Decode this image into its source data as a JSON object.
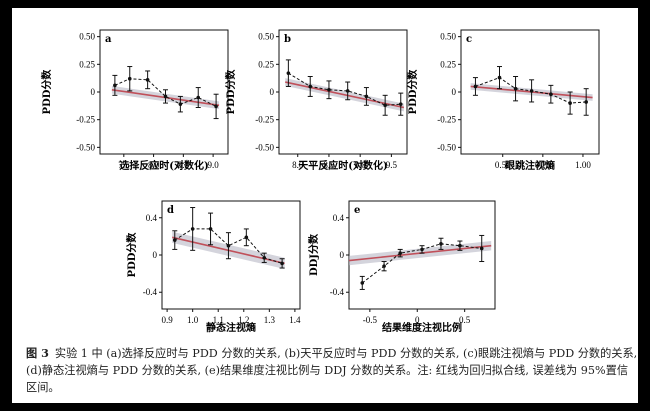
{
  "caption": {
    "label": "图 3",
    "text": "实验 1 中 (a)选择反应时与 PDD 分数的关系, (b)天平反应时与 PDD 分数的关系, (c)眼跳注视熵与 PDD 分数的关系, (d)静态注视熵与 PDD 分数的关系, (e)结果维度注视比例与 DDJ 分数的关系。注: 红线为回归拟合线, 误差线为 95%置信区间。"
  },
  "colors": {
    "regression": "#c0505a",
    "band": "#b8b8c4",
    "points": "#111111"
  },
  "chart_data": [
    {
      "panel": "a",
      "type": "line",
      "xlabel": "选择反应时(对数化)",
      "ylabel": "PDD分数",
      "xlim": [
        7.1,
        9.25
      ],
      "ylim": [
        -0.56,
        0.56
      ],
      "xticks": [
        7.5,
        8.0,
        8.5,
        9.0
      ],
      "xtick_labels": [
        "7.5",
        "8.0",
        "8.5",
        "9.0"
      ],
      "yticks": [
        -0.5,
        -0.25,
        0,
        0.25,
        0.5
      ],
      "ytick_labels": [
        "-0.50",
        "-0.25",
        "0",
        "0.25",
        "0.50"
      ],
      "x": [
        7.35,
        7.6,
        7.9,
        8.2,
        8.45,
        8.75,
        9.05
      ],
      "y": [
        0.06,
        0.12,
        0.11,
        -0.04,
        -0.11,
        -0.05,
        -0.13
      ],
      "err": [
        0.09,
        0.11,
        0.08,
        0.06,
        0.07,
        0.09,
        0.11
      ],
      "fit": {
        "x": [
          7.3,
          9.1
        ],
        "y": [
          0.02,
          -0.12
        ],
        "band": 0.035
      }
    },
    {
      "panel": "b",
      "type": "line",
      "xlabel": "天平反应时(对数化)",
      "ylabel": "PDD分数",
      "xlim": [
        7.7,
        9.75
      ],
      "ylim": [
        -0.56,
        0.56
      ],
      "xticks": [
        8.0,
        8.5,
        9.0,
        9.5
      ],
      "xtick_labels": [
        "8.0",
        "8.5",
        "9.0",
        "9.5"
      ],
      "yticks": [
        -0.5,
        -0.25,
        0,
        0.25,
        0.5
      ],
      "ytick_labels": [
        "-0.50",
        "-0.25",
        "0",
        "0.25",
        "0.50"
      ],
      "x": [
        7.85,
        8.2,
        8.5,
        8.8,
        9.1,
        9.4,
        9.65
      ],
      "y": [
        0.17,
        0.05,
        0.02,
        0.01,
        -0.04,
        -0.12,
        -0.11
      ],
      "err": [
        0.12,
        0.09,
        0.08,
        0.08,
        0.08,
        0.09,
        0.1
      ],
      "fit": {
        "x": [
          7.8,
          9.7
        ],
        "y": [
          0.09,
          -0.14
        ],
        "band": 0.035
      }
    },
    {
      "panel": "c",
      "type": "line",
      "xlabel": "眼跳注视熵",
      "ylabel": "PDD分数",
      "xlim": [
        0.24,
        1.1
      ],
      "ylim": [
        -0.56,
        0.56
      ],
      "xticks": [
        0.5,
        0.75,
        1.0
      ],
      "xtick_labels": [
        "0.50",
        "0.75",
        "1.00"
      ],
      "yticks": [
        -0.5,
        -0.25,
        0,
        0.25,
        0.5
      ],
      "ytick_labels": [
        "-0.50",
        "-0.25",
        "0",
        "0.25",
        "0.50"
      ],
      "x": [
        0.33,
        0.48,
        0.58,
        0.68,
        0.8,
        0.92,
        1.02
      ],
      "y": [
        0.05,
        0.13,
        0.03,
        0.01,
        -0.02,
        -0.1,
        -0.09
      ],
      "err": [
        0.08,
        0.1,
        0.11,
        0.1,
        0.08,
        0.1,
        0.12
      ],
      "fit": {
        "x": [
          0.3,
          1.06
        ],
        "y": [
          0.05,
          -0.05
        ],
        "band": 0.03
      }
    },
    {
      "panel": "d",
      "type": "line",
      "xlabel": "静态注视熵",
      "ylabel": "PDD分数",
      "xlim": [
        0.88,
        1.42
      ],
      "ylim": [
        -0.58,
        0.58
      ],
      "xticks": [
        0.9,
        1.0,
        1.1,
        1.2,
        1.3,
        1.4
      ],
      "xtick_labels": [
        "0.9",
        "1.0",
        "1.1",
        "1.2",
        "1.3",
        "1.4"
      ],
      "yticks": [
        -0.4,
        0,
        0.4
      ],
      "ytick_labels": [
        "-0.4",
        "0",
        "0.4"
      ],
      "x": [
        0.93,
        1.0,
        1.07,
        1.14,
        1.21,
        1.28,
        1.35
      ],
      "y": [
        0.16,
        0.28,
        0.28,
        0.1,
        0.19,
        -0.03,
        -0.09
      ],
      "err": [
        0.1,
        0.23,
        0.17,
        0.14,
        0.09,
        0.05,
        0.05
      ],
      "fit": {
        "x": [
          0.92,
          1.36
        ],
        "y": [
          0.19,
          -0.09
        ],
        "band": 0.06
      }
    },
    {
      "panel": "e",
      "type": "line",
      "xlabel": "结果维度注视比例",
      "ylabel": "DDJ分数",
      "xlim": [
        -0.72,
        0.82
      ],
      "ylim": [
        -0.58,
        0.58
      ],
      "xticks": [
        -0.5,
        0,
        0.5
      ],
      "xtick_labels": [
        "-0.5",
        "0",
        "0.5"
      ],
      "yticks": [
        -0.4,
        0,
        0.4
      ],
      "ytick_labels": [
        "-0.4",
        "0",
        "0.4"
      ],
      "x": [
        -0.58,
        -0.35,
        -0.18,
        0.05,
        0.25,
        0.45,
        0.68
      ],
      "y": [
        -0.3,
        -0.12,
        0.02,
        0.06,
        0.12,
        0.1,
        0.07
      ],
      "err": [
        0.07,
        0.05,
        0.04,
        0.04,
        0.06,
        0.05,
        0.14
      ],
      "fit": {
        "x": [
          -0.72,
          0.78
        ],
        "y": [
          -0.06,
          0.1
        ],
        "band": 0.05
      }
    }
  ]
}
